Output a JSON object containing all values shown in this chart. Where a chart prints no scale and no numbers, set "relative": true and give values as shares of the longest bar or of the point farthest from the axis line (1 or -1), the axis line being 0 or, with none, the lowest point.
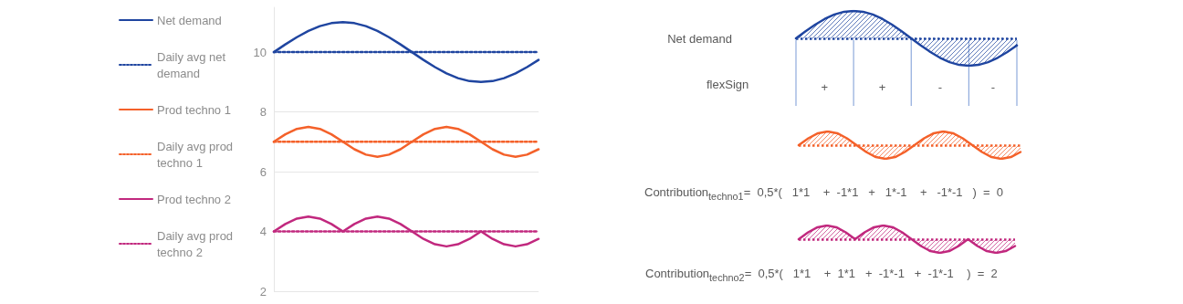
{
  "chart_data": [
    {
      "type": "line",
      "categories": [
        null,
        null,
        null,
        null,
        null,
        null,
        null,
        null,
        null,
        null,
        null,
        null,
        null,
        null,
        null,
        null,
        null,
        null,
        null,
        null,
        null,
        null,
        null,
        null
      ],
      "ylim": [
        2,
        11.5
      ],
      "yticks": [
        2,
        4,
        6,
        8,
        10
      ],
      "grid": "y",
      "legend": "left",
      "marker": "none",
      "series": [
        {
          "name": "Net demand",
          "color": "#1f45a0",
          "line_style": "solid",
          "values": [
            10,
            10.26,
            10.5,
            10.71,
            10.87,
            10.97,
            11,
            10.97,
            10.87,
            10.71,
            10.5,
            10.26,
            10,
            9.74,
            9.5,
            9.29,
            9.13,
            9.03,
            9,
            9.03,
            9.13,
            9.29,
            9.5,
            9.74
          ]
        },
        {
          "name": "Daily avg net demand",
          "color": "#1f45a0",
          "line_style": "dotted",
          "values": [
            10,
            10,
            10,
            10,
            10,
            10,
            10,
            10,
            10,
            10,
            10,
            10,
            10,
            10,
            10,
            10,
            10,
            10,
            10,
            10,
            10,
            10,
            10,
            10
          ]
        },
        {
          "name": "Prod techno 1",
          "color": "#f4612a",
          "line_style": "solid",
          "values": [
            7,
            7.25,
            7.43,
            7.5,
            7.43,
            7.25,
            7,
            6.75,
            6.57,
            6.5,
            6.57,
            6.75,
            7,
            7.25,
            7.43,
            7.5,
            7.43,
            7.25,
            7,
            6.75,
            6.57,
            6.5,
            6.57,
            6.75
          ]
        },
        {
          "name": "Daily avg prod techno 1",
          "color": "#f4612a",
          "line_style": "dotted",
          "values": [
            7,
            7,
            7,
            7,
            7,
            7,
            7,
            7,
            7,
            7,
            7,
            7,
            7,
            7,
            7,
            7,
            7,
            7,
            7,
            7,
            7,
            7,
            7,
            7
          ]
        },
        {
          "name": "Prod techno 2",
          "color": "#c1287e",
          "line_style": "solid",
          "values": [
            4,
            4.25,
            4.43,
            4.5,
            4.43,
            4.25,
            4,
            4.25,
            4.43,
            4.5,
            4.43,
            4.25,
            4,
            3.75,
            3.57,
            3.5,
            3.57,
            3.75,
            4,
            3.75,
            3.57,
            3.5,
            3.57,
            3.75
          ]
        },
        {
          "name": "Daily avg prod techno 2",
          "color": "#c1287e",
          "line_style": "dotted",
          "values": [
            4,
            4,
            4,
            4,
            4,
            4,
            4,
            4,
            4,
            4,
            4,
            4,
            4,
            4,
            4,
            4,
            4,
            4,
            4,
            4,
            4,
            4,
            4,
            4
          ]
        }
      ]
    },
    {
      "type": "area",
      "relative": true,
      "ylabel": "Net demand",
      "marker": "none",
      "categories": [
        null,
        null,
        null,
        null,
        null,
        null,
        null,
        null,
        null,
        null,
        null,
        null,
        null,
        null,
        null,
        null,
        null,
        null,
        null,
        null,
        null,
        null,
        null,
        null
      ],
      "ref_lines": [
        {
          "axis": "y",
          "value": 0,
          "color": "#1f45a0",
          "line_style": "dotted"
        }
      ],
      "series": [
        {
          "color": "#1f45a0",
          "values": [
            0,
            0.26,
            0.5,
            0.71,
            0.87,
            0.97,
            1,
            0.97,
            0.87,
            0.71,
            0.5,
            0.26,
            0,
            -0.26,
            -0.5,
            -0.71,
            -0.87,
            -0.97,
            -1,
            -0.97,
            -0.87,
            -0.71,
            -0.5,
            -0.26
          ]
        }
      ]
    },
    {
      "type": "area",
      "relative": true,
      "marker": "none",
      "categories": [
        null,
        null,
        null,
        null,
        null,
        null,
        null,
        null,
        null,
        null,
        null,
        null,
        null,
        null,
        null,
        null,
        null,
        null,
        null,
        null,
        null,
        null,
        null,
        null
      ],
      "ref_lines": [
        {
          "axis": "y",
          "value": 0,
          "color": "#f4612a",
          "line_style": "dotted"
        }
      ],
      "series": [
        {
          "color": "#f4612a",
          "values": [
            0,
            0.5,
            0.87,
            1,
            0.87,
            0.5,
            0,
            -0.5,
            -0.87,
            -1,
            -0.87,
            -0.5,
            0,
            0.5,
            0.87,
            1,
            0.87,
            0.5,
            0,
            -0.5,
            -0.87,
            -1,
            -0.87,
            -0.5
          ]
        }
      ]
    },
    {
      "type": "area",
      "relative": true,
      "marker": "none",
      "categories": [
        null,
        null,
        null,
        null,
        null,
        null,
        null,
        null,
        null,
        null,
        null,
        null,
        null,
        null,
        null,
        null,
        null,
        null,
        null,
        null,
        null,
        null,
        null,
        null
      ],
      "ref_lines": [
        {
          "axis": "y",
          "value": 0,
          "color": "#c1287e",
          "line_style": "dotted"
        }
      ],
      "series": [
        {
          "color": "#c1287e",
          "values": [
            0,
            0.5,
            0.87,
            1,
            0.87,
            0.5,
            0,
            0.5,
            0.87,
            1,
            0.87,
            0.5,
            0,
            -0.5,
            -0.87,
            -1,
            -0.87,
            -0.5,
            0,
            -0.5,
            -0.87,
            -1,
            -0.87,
            -0.5
          ]
        }
      ]
    },
    {
      "type": "other",
      "annotations": [
        "flexSign",
        "+",
        "+",
        "-",
        "-",
        "Contribution$_{techno1}$=  0,5*(   1*1    +  -1*1   +   1*-1    +   -1*-1   )  =  0",
        "Contribution$_{techno2}$=  0,5*(   1*1    +  1*1   +  -1*-1   +  -1*-1    )  =  2"
      ]
    }
  ]
}
